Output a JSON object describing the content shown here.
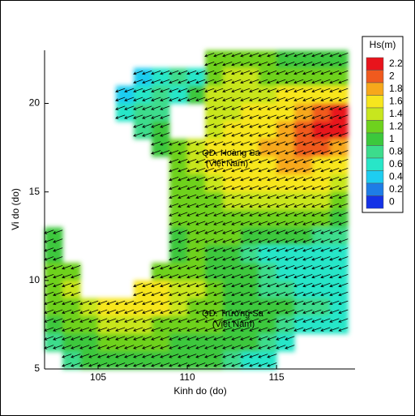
{
  "chart_data": {
    "type": "heatmap",
    "xlabel": "Kinh do (do)",
    "ylabel": "Vi do (do)",
    "xlim": [
      102,
      119.4
    ],
    "ylim": [
      5,
      23
    ],
    "xticks": [
      105,
      110,
      115
    ],
    "yticks": [
      5,
      10,
      15,
      20
    ],
    "x": [
      102.5,
      103.5,
      104.5,
      105.5,
      106.5,
      107.5,
      108.5,
      109.5,
      110.5,
      111.5,
      112.5,
      113.5,
      114.5,
      115.5,
      116.5,
      117.5,
      118.5
    ],
    "y": [
      22.5,
      21.5,
      20.5,
      19.5,
      18.5,
      17.5,
      16.5,
      15.5,
      14.5,
      13.5,
      12.5,
      11.5,
      10.5,
      9.5,
      8.5,
      7.5,
      6.5,
      5.5
    ],
    "z": [
      [
        null,
        null,
        null,
        null,
        null,
        null,
        null,
        null,
        null,
        1.2,
        1.2,
        1.1,
        1.1,
        1.0,
        1.0,
        1.0,
        1.0
      ],
      [
        null,
        null,
        null,
        null,
        null,
        0.4,
        0.6,
        0.8,
        0.6,
        1.2,
        1.3,
        1.3,
        1.2,
        1.2,
        1.2,
        1.2,
        1.2
      ],
      [
        null,
        null,
        null,
        null,
        0.4,
        0.7,
        0.8,
        0.7,
        0.9,
        1.3,
        1.4,
        1.4,
        1.4,
        1.5,
        1.5,
        1.5,
        1.6
      ],
      [
        null,
        null,
        null,
        null,
        0.6,
        0.8,
        0.8,
        null,
        null,
        1.3,
        1.4,
        1.5,
        1.6,
        1.7,
        1.9,
        2.0,
        2.1
      ],
      [
        null,
        null,
        null,
        null,
        null,
        0.8,
        0.9,
        null,
        null,
        1.3,
        1.5,
        1.6,
        1.7,
        1.8,
        2.0,
        2.2,
        2.2
      ],
      [
        null,
        null,
        null,
        null,
        null,
        null,
        0.9,
        1.1,
        1.3,
        1.5,
        1.6,
        1.7,
        1.8,
        1.9,
        2.0,
        2.0,
        1.9
      ],
      [
        null,
        null,
        null,
        null,
        null,
        null,
        null,
        1.1,
        1.3,
        1.5,
        1.6,
        1.7,
        1.7,
        1.8,
        1.8,
        1.7,
        1.6
      ],
      [
        null,
        null,
        null,
        null,
        null,
        null,
        null,
        1.1,
        1.2,
        1.3,
        1.5,
        1.6,
        1.6,
        1.6,
        1.6,
        1.5,
        1.4
      ],
      [
        null,
        null,
        null,
        null,
        null,
        null,
        null,
        1.1,
        1.2,
        1.2,
        1.3,
        1.4,
        1.4,
        1.4,
        1.4,
        1.3,
        1.2
      ],
      [
        null,
        null,
        null,
        null,
        null,
        null,
        null,
        1.1,
        1.1,
        1.2,
        1.2,
        1.2,
        1.2,
        1.2,
        1.2,
        1.1,
        1.0
      ],
      [
        0.9,
        null,
        null,
        null,
        null,
        null,
        null,
        1.0,
        1.1,
        1.1,
        1.1,
        1.0,
        1.0,
        1.0,
        0.9,
        0.8,
        0.8
      ],
      [
        1.0,
        null,
        null,
        null,
        null,
        null,
        null,
        1.0,
        1.1,
        1.0,
        0.9,
        0.8,
        0.7,
        0.7,
        0.7,
        0.6,
        0.6
      ],
      [
        1.1,
        1.2,
        null,
        null,
        null,
        null,
        1.1,
        1.2,
        1.1,
        1.0,
        1.0,
        0.9,
        0.8,
        0.7,
        0.7,
        0.6,
        0.6
      ],
      [
        1.2,
        1.3,
        null,
        null,
        null,
        1.5,
        1.6,
        1.4,
        1.3,
        1.2,
        1.0,
        0.9,
        0.8,
        0.8,
        0.7,
        0.7,
        0.6
      ],
      [
        1.1,
        1.2,
        1.3,
        1.5,
        1.6,
        1.6,
        1.5,
        1.4,
        1.2,
        1.1,
        1.0,
        1.0,
        0.9,
        0.9,
        0.8,
        0.8,
        0.7
      ],
      [
        1.0,
        1.1,
        1.2,
        1.3,
        1.3,
        1.3,
        1.2,
        1.2,
        1.1,
        1.1,
        1.0,
        1.0,
        0.9,
        0.8,
        0.7,
        0.7,
        0.7
      ],
      [
        0.8,
        1.0,
        1.0,
        1.1,
        1.1,
        1.1,
        1.1,
        1.0,
        1.0,
        1.0,
        1.0,
        0.9,
        0.8,
        0.6,
        null,
        null,
        null
      ],
      [
        null,
        0.8,
        0.9,
        1.0,
        1.0,
        1.0,
        1.0,
        1.0,
        0.9,
        0.9,
        0.8,
        0.7,
        0.6,
        null,
        null,
        null,
        null
      ]
    ],
    "arrow_direction": 250,
    "arrow_color": "#000000",
    "colorbar": {
      "title": "Hs(m)",
      "ticks": [
        2.2,
        2,
        1.8,
        1.6,
        1.4,
        1.2,
        1,
        0.8,
        0.6,
        0.4,
        0.2,
        0
      ],
      "colors": [
        "#e8141c",
        "#f05a1e",
        "#f7a81b",
        "#f7e61e",
        "#c8e61e",
        "#6ed21e",
        "#3cc83c",
        "#3cdc8c",
        "#28e6c8",
        "#1ecdf0",
        "#1e7de6",
        "#1432e6"
      ]
    },
    "annotations": [
      "QĐ. Hoàng Sa",
      "(Việt Nam)",
      "QĐ. Trường Sa",
      "(Việt Nam)"
    ]
  }
}
